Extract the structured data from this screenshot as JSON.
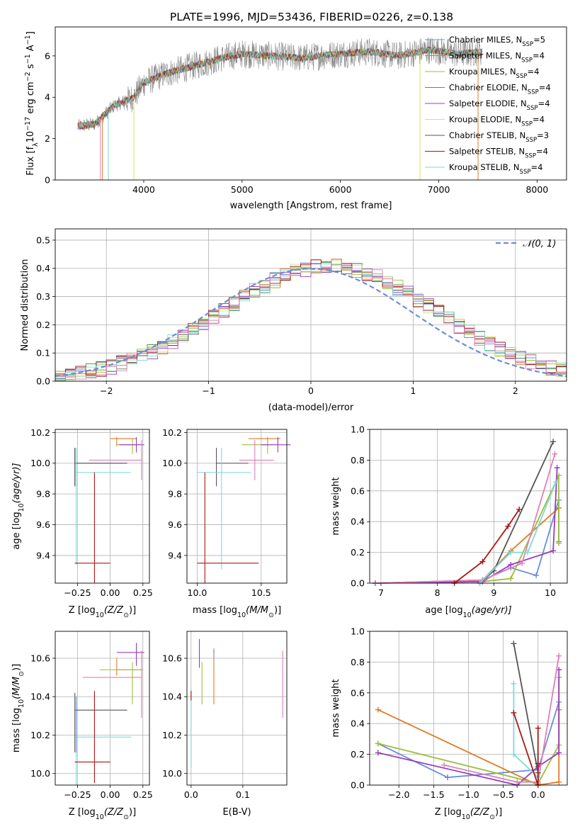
{
  "figure_title": "PLATE=1996, MJD=53436, FIBERID=0226, z=0.138",
  "models": [
    {
      "name": "Chabrier MILES, N",
      "sub": "SSP",
      "n": "=5",
      "color": "#6a8fd8"
    },
    {
      "name": "Salpeter MILES, N",
      "sub": "SSP",
      "n": "=4",
      "color": "#e07b26"
    },
    {
      "name": "Kroupa MILES, N",
      "sub": "SSP",
      "n": "=4",
      "color": "#9bbf3a"
    },
    {
      "name": "Chabrier ELODIE, N",
      "sub": "SSP",
      "n": "=4",
      "color": "#4a9a4a"
    },
    {
      "name": "Salpeter ELODIE, N",
      "sub": "SSP",
      "n": "=4",
      "color": "#9a3cc0"
    },
    {
      "name": "Kroupa ELODIE, N",
      "sub": "SSP",
      "n": "=4",
      "color": "#d8e06a"
    },
    {
      "name": "Chabrier STELIB, N",
      "sub": "SSP",
      "n": "=3",
      "color": "#555555"
    },
    {
      "name": "Salpeter STELIB, N",
      "sub": "SSP",
      "n": "=4",
      "color": "#b01515"
    },
    {
      "name": "Kroupa STELIB, N",
      "sub": "SSP",
      "n": "=4",
      "color": "#7fd8d8"
    }
  ],
  "extra_colors": {
    "pink": "#e07fb8",
    "grey": "#888888",
    "blue": "#6a8fd8"
  },
  "chart_data": [
    {
      "id": "spectrum",
      "type": "line",
      "xlabel": "wavelength [Angstrom, rest frame]",
      "ylabel_parts": [
        "Flux [f",
        "λ",
        "10",
        "−17",
        " erg cm",
        "−2",
        " s",
        "−1",
        " A",
        "−1",
        "]"
      ],
      "xlim": [
        3100,
        8300
      ],
      "ylim": [
        0,
        7.4
      ],
      "xticks": [
        4000,
        5000,
        6000,
        7000,
        8000
      ],
      "yticks": [
        0,
        2,
        4,
        6
      ],
      "data_range": [
        3330,
        7440
      ],
      "continuum_x": [
        3330,
        3500,
        3700,
        3900,
        4000,
        4200,
        4500,
        4800,
        5000,
        5300,
        5600,
        6000,
        6300,
        6600,
        6900,
        7200,
        7440
      ],
      "continuum_y": [
        2.6,
        2.7,
        3.6,
        4.0,
        4.7,
        5.1,
        5.5,
        5.9,
        6.1,
        6.0,
        5.9,
        6.1,
        6.2,
        6.0,
        6.3,
        6.1,
        6.2
      ],
      "drop_lines_x": [
        3560,
        3580,
        3640,
        3900,
        6810,
        7400
      ]
    },
    {
      "id": "residuals",
      "type": "step",
      "xlabel": "(data-model)/error",
      "ylabel": "Normed distribution",
      "xlim": [
        -2.5,
        2.5
      ],
      "ylim": [
        0,
        0.54
      ],
      "xticks": [
        -2,
        -1,
        0,
        1,
        2
      ],
      "yticks": [
        0.0,
        0.1,
        0.2,
        0.3,
        0.4,
        0.5
      ],
      "legend": "𝒩(0, 1)",
      "legend_loc": "upper-right",
      "grid": true
    },
    {
      "id": "age_vs_Z",
      "type": "errorbar",
      "xlabel": "Z [log",
      "xlabel_sub": "10",
      "xlabel_rest": "(Z/Z",
      "xlabel_end": ")]",
      "ylabel": "age  [log",
      "ylabel_sub": "10",
      "ylabel_rest": "(age/yr)]",
      "xlim": [
        -0.42,
        0.3
      ],
      "ylim": [
        9.22,
        10.22
      ],
      "xticks": [
        -0.25,
        0.0,
        0.25
      ],
      "yticks": [
        9.4,
        9.6,
        9.8,
        10.0,
        10.2
      ],
      "points": [
        {
          "x": -0.27,
          "y": 10.0,
          "xe": [
            0,
            0.4
          ],
          "ye": [
            0.15,
            0.1
          ],
          "c": "#6a8fd8"
        },
        {
          "x": 0.05,
          "y": 10.16,
          "xe": [
            0.05,
            0.15
          ],
          "ye": [
            0.05,
            0.01
          ],
          "c": "#e07b26"
        },
        {
          "x": 0.17,
          "y": 10.12,
          "xe": [
            0.12,
            0.06
          ],
          "ye": [
            0.06,
            0.04
          ],
          "c": "#9bbf3a"
        },
        {
          "x": 0.2,
          "y": 10.12,
          "xe": [
            0.13,
            0.06
          ],
          "ye": [
            0.05,
            0.05
          ],
          "c": "#9a3cc0"
        },
        {
          "x": 0.24,
          "y": 10.02,
          "xe": [
            0.4,
            0.0
          ],
          "ye": [
            0.13,
            0.13
          ],
          "c": "#e07fb8"
        },
        {
          "x": -0.27,
          "y": 10.0,
          "xe": [
            0.0,
            0.4
          ],
          "ye": [
            0.15,
            0.1
          ],
          "c": "#555555"
        },
        {
          "x": -0.26,
          "y": 9.94,
          "xe": [
            0.0,
            0.42
          ],
          "ye": [
            0.6,
            0.16
          ],
          "c": "#7fd8d8"
        },
        {
          "x": -0.12,
          "y": 9.35,
          "xe": [
            0.15,
            0.12
          ],
          "ye": [
            0.13,
            0.59
          ],
          "c": "#b01515"
        }
      ]
    },
    {
      "id": "age_vs_mass",
      "type": "errorbar",
      "xlabel": "mass [log",
      "xlabel_sub": "10",
      "xlabel_rest": "(M/M",
      "xlabel_end": ")]",
      "xlim": [
        9.92,
        10.7
      ],
      "ylim": [
        9.22,
        10.22
      ],
      "xticks": [
        10.0,
        10.5
      ],
      "yticks": [
        9.4,
        9.6,
        9.8,
        10.0,
        10.2
      ],
      "points": [
        {
          "x": 10.15,
          "y": 10.0,
          "xe": [
            0,
            0.25
          ],
          "ye": [
            0.15,
            0.1
          ],
          "c": "#555555"
        },
        {
          "x": 10.55,
          "y": 10.16,
          "xe": [
            0.15,
            0.1
          ],
          "ye": [
            0.05,
            0.01
          ],
          "c": "#e07b26"
        },
        {
          "x": 10.55,
          "y": 10.12,
          "xe": [
            0.2,
            0.05
          ],
          "ye": [
            0.06,
            0.04
          ],
          "c": "#9bbf3a"
        },
        {
          "x": 10.63,
          "y": 10.12,
          "xe": [
            0.13,
            0.1
          ],
          "ye": [
            0.05,
            0.05
          ],
          "c": "#9a3cc0"
        },
        {
          "x": 10.45,
          "y": 10.02,
          "xe": [
            0.12,
            0.15
          ],
          "ye": [
            0.13,
            0.13
          ],
          "c": "#e07fb8"
        },
        {
          "x": 10.19,
          "y": 9.94,
          "xe": [
            0.19,
            0.23
          ],
          "ye": [
            0.63,
            0.16
          ],
          "c": "#7fd8d8"
        },
        {
          "x": 10.06,
          "y": 9.35,
          "xe": [
            0.06,
            0.42
          ],
          "ye": [
            0.13,
            0.59
          ],
          "c": "#b01515"
        }
      ]
    },
    {
      "id": "mw_vs_age",
      "type": "line",
      "xlabel": "age  [log",
      "xlabel_sub": "10",
      "xlabel_rest": "(age/yr)]",
      "ylabel": "mass weight",
      "xlim": [
        6.8,
        10.3
      ],
      "ylim": [
        0,
        1.0
      ],
      "xticks": [
        7,
        8,
        9,
        10
      ],
      "yticks": [
        0.0,
        0.2,
        0.4,
        0.6,
        0.8,
        1.0
      ],
      "series": [
        {
          "c": "#6a8fd8",
          "x": [
            6.9,
            8.8,
            9.3,
            9.75,
            10.15,
            10.15
          ],
          "y": [
            0.0,
            0.02,
            0.1,
            0.05,
            0.54,
            0.27
          ]
        },
        {
          "c": "#e07b26",
          "x": [
            6.9,
            8.8,
            9.3,
            10.15,
            10.15
          ],
          "y": [
            0.0,
            0.02,
            0.21,
            0.49,
            0.49
          ]
        },
        {
          "c": "#9bbf3a",
          "x": [
            6.9,
            8.8,
            9.3,
            10.15,
            10.15
          ],
          "y": [
            0.0,
            0.01,
            0.03,
            0.7,
            0.26
          ]
        },
        {
          "c": "#9a3cc0",
          "x": [
            6.9,
            8.8,
            9.3,
            10.05,
            10.12
          ],
          "y": [
            0.0,
            0.01,
            0.12,
            0.21,
            0.75
          ]
        },
        {
          "c": "#e07fb8",
          "x": [
            6.9,
            8.8,
            9.5,
            10.08
          ],
          "y": [
            0.0,
            0.02,
            0.13,
            0.84
          ]
        },
        {
          "c": "#555555",
          "x": [
            8.75,
            9.0,
            10.05
          ],
          "y": [
            0.0,
            0.08,
            0.92
          ]
        },
        {
          "c": "#7fd8d8",
          "x": [
            8.75,
            9.3,
            9.6,
            10.1
          ],
          "y": [
            0.0,
            0.2,
            0.2,
            0.66
          ]
        },
        {
          "c": "#b01515",
          "x": [
            8.3,
            8.8,
            9.25,
            9.45
          ],
          "y": [
            0.0,
            0.14,
            0.37,
            0.48
          ]
        }
      ]
    },
    {
      "id": "mass_vs_Z",
      "type": "errorbar",
      "xlabel": "Z [log",
      "xlabel_sub": "10",
      "xlabel_rest": "(Z/Z",
      "xlabel_end": ")]",
      "ylabel": "mass [log",
      "ylabel_sub": "10",
      "ylabel_rest": "(M/M",
      "ylabel_end": ")]",
      "xlim": [
        -0.42,
        0.3
      ],
      "ylim": [
        9.94,
        10.74
      ],
      "xticks": [
        -0.25,
        0.0,
        0.25
      ],
      "yticks": [
        10.0,
        10.2,
        10.4,
        10.6
      ],
      "points": [
        {
          "x": 0.05,
          "y": 10.54,
          "xe": [
            0.0,
            0.2
          ],
          "ye": [
            0.03,
            0.06
          ],
          "c": "#e07b26"
        },
        {
          "x": 0.17,
          "y": 10.54,
          "xe": [
            0.25,
            0.06
          ],
          "ye": [
            0.18,
            0.04
          ],
          "c": "#9bbf3a"
        },
        {
          "x": 0.2,
          "y": 10.63,
          "xe": [
            0.15,
            0.06
          ],
          "ye": [
            0.07,
            0.05
          ],
          "c": "#9a3cc0"
        },
        {
          "x": 0.24,
          "y": 10.5,
          "xe": [
            0.45,
            0.0
          ],
          "ye": [
            0.21,
            0.14
          ],
          "c": "#e07fb8"
        },
        {
          "x": -0.27,
          "y": 10.33,
          "xe": [
            0.0,
            0.4
          ],
          "ye": [
            0.22,
            0.09
          ],
          "c": "#555555"
        },
        {
          "x": -0.26,
          "y": 10.19,
          "xe": [
            0.0,
            0.42
          ],
          "ye": [
            0.25,
            0.16
          ],
          "c": "#7fd8d8"
        },
        {
          "x": -0.26,
          "y": 10.25,
          "xe": [
            0.0,
            0.0
          ],
          "ye": [
            0.14,
            0.15
          ],
          "c": "#6a8fd8"
        },
        {
          "x": -0.12,
          "y": 10.06,
          "xe": [
            0.15,
            0.12
          ],
          "ye": [
            0.11,
            0.37
          ],
          "c": "#b01515"
        }
      ]
    },
    {
      "id": "mass_vs_ebv",
      "type": "errorbar",
      "xlabel": "E(B-V)",
      "xlim": [
        -0.008,
        0.185
      ],
      "ylim": [
        9.94,
        10.74
      ],
      "xticks": [
        0.0,
        0.1
      ],
      "yticks": [
        10.0,
        10.2,
        10.4,
        10.6
      ],
      "points": [
        {
          "x": 0.0,
          "y": 10.38,
          "xe": [
            0,
            0
          ],
          "ye": [
            0.35,
            0.06
          ],
          "c": "#7fd8d8"
        },
        {
          "x": 0.0,
          "y": 10.38,
          "xe": [
            0,
            0
          ],
          "ye": [
            0.0,
            0.05
          ],
          "c": "#b01515"
        },
        {
          "x": 0.016,
          "y": 10.63,
          "xe": [
            0,
            0
          ],
          "ye": [
            0.08,
            0.07
          ],
          "c": "#9a3cc0"
        },
        {
          "x": 0.021,
          "y": 10.54,
          "xe": [
            0,
            0
          ],
          "ye": [
            0.18,
            0.04
          ],
          "c": "#9bbf3a"
        },
        {
          "x": 0.044,
          "y": 10.52,
          "xe": [
            0,
            0
          ],
          "ye": [
            0.16,
            0.13
          ],
          "c": "#e07b26"
        },
        {
          "x": 0.044,
          "y": 10.6,
          "xe": [
            0,
            0
          ],
          "ye": [
            0.0,
            0.05
          ],
          "c": "#6a8fd8"
        },
        {
          "x": 0.177,
          "y": 10.5,
          "xe": [
            0,
            0
          ],
          "ye": [
            0.21,
            0.14
          ],
          "c": "#e07fb8"
        }
      ]
    },
    {
      "id": "mw_vs_Z",
      "type": "line",
      "xlabel": "Z [log",
      "xlabel_sub": "10",
      "xlabel_rest": "(Z/Z",
      "xlabel_end": ")]",
      "ylabel": "mass weight",
      "xlim": [
        -2.42,
        0.42
      ],
      "ylim": [
        0,
        1.0
      ],
      "xticks": [
        -2.0,
        -1.5,
        -1.0,
        -0.5,
        0.0
      ],
      "yticks": [
        0.0,
        0.2,
        0.4,
        0.6,
        0.8,
        1.0
      ],
      "series": [
        {
          "c": "#6a8fd8",
          "x": [
            -2.3,
            -1.3,
            -1.3,
            0.0,
            0.3
          ],
          "y": [
            0.27,
            0.05,
            0.05,
            0.1,
            0.54
          ]
        },
        {
          "c": "#e07b26",
          "x": [
            -2.3,
            0.0,
            0.3,
            0.3
          ],
          "y": [
            0.49,
            0.0,
            0.02,
            0.49
          ]
        },
        {
          "c": "#9bbf3a",
          "x": [
            -2.3,
            0.0,
            0.3,
            0.3
          ],
          "y": [
            0.27,
            0.01,
            0.26,
            0.7
          ]
        },
        {
          "c": "#9a3cc0",
          "x": [
            -2.3,
            -0.3,
            0.0,
            0.3,
            0.3
          ],
          "y": [
            0.21,
            0.0,
            0.12,
            0.21,
            0.75
          ]
        },
        {
          "c": "#e07fb8",
          "x": [
            -1.35,
            -0.3,
            0.0,
            0.3
          ],
          "y": [
            0.13,
            0.02,
            0.02,
            0.84
          ]
        },
        {
          "c": "#555555",
          "x": [
            -0.35,
            0.0
          ],
          "y": [
            0.92,
            0.08
          ]
        },
        {
          "c": "#7fd8d8",
          "x": [
            -0.35,
            -0.35,
            0.0,
            0.0
          ],
          "y": [
            0.66,
            0.2,
            0.05,
            0.2
          ]
        },
        {
          "c": "#b01515",
          "x": [
            -0.35,
            0.0,
            0.0,
            0.0
          ],
          "y": [
            0.47,
            0.0,
            0.14,
            0.37
          ]
        }
      ]
    }
  ]
}
